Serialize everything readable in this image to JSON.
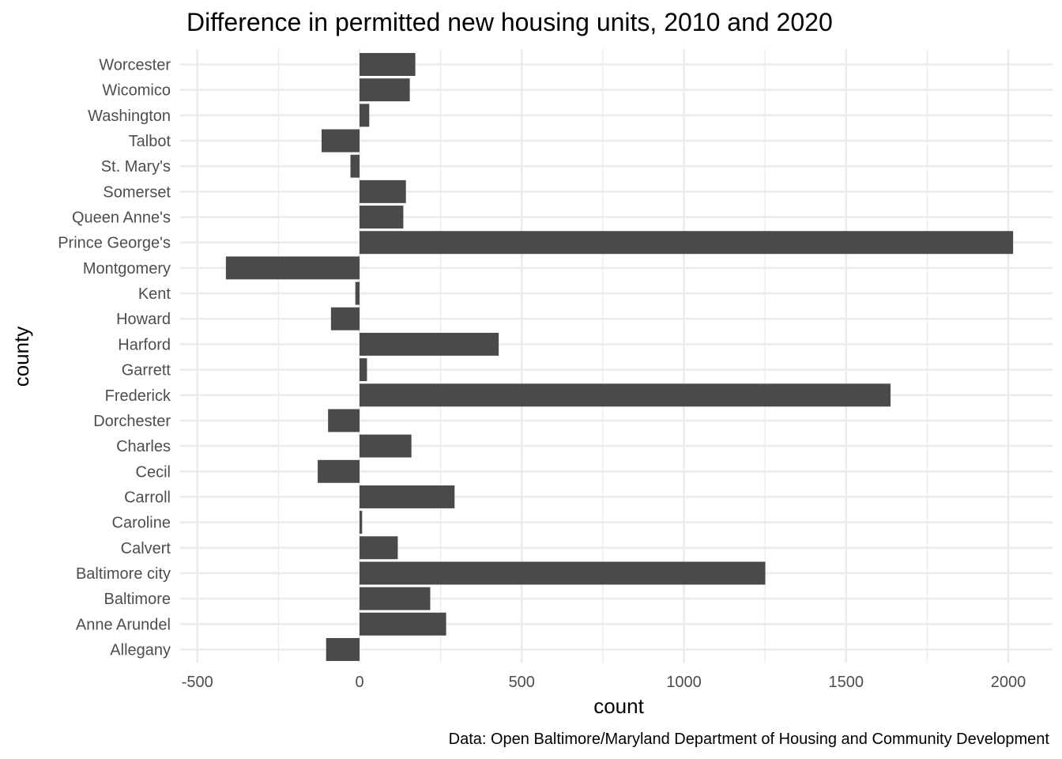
{
  "chart_data": {
    "type": "bar",
    "orientation": "horizontal",
    "title": "Difference in permitted new housing units, 2010 and 2020",
    "xlabel": "count",
    "ylabel": "county",
    "caption": "Data: Open Baltimore/Maryland Department of Housing and Community Development",
    "xlim": [
      -500,
      2100
    ],
    "xticks": [
      -500,
      0,
      500,
      1000,
      1500,
      2000
    ],
    "xtick_labels": [
      "-500",
      "0",
      "500",
      "1000",
      "1500",
      "2000"
    ],
    "grid": true,
    "bar_color": "#4a4a4a",
    "categories": [
      "Allegany",
      "Anne Arundel",
      "Baltimore",
      "Baltimore city",
      "Calvert",
      "Caroline",
      "Carroll",
      "Cecil",
      "Charles",
      "Dorchester",
      "Frederick",
      "Garrett",
      "Harford",
      "Howard",
      "Kent",
      "Montgomery",
      "Prince George's",
      "Queen Anne's",
      "Somerset",
      "St. Mary's",
      "Talbot",
      "Washington",
      "Wicomico",
      "Worcester"
    ],
    "values": [
      -103,
      267,
      218,
      1251,
      118,
      8,
      293,
      -129,
      160,
      -97,
      1637,
      23,
      429,
      -88,
      -13,
      -412,
      2015,
      135,
      143,
      -28,
      -117,
      30,
      155,
      172
    ]
  }
}
